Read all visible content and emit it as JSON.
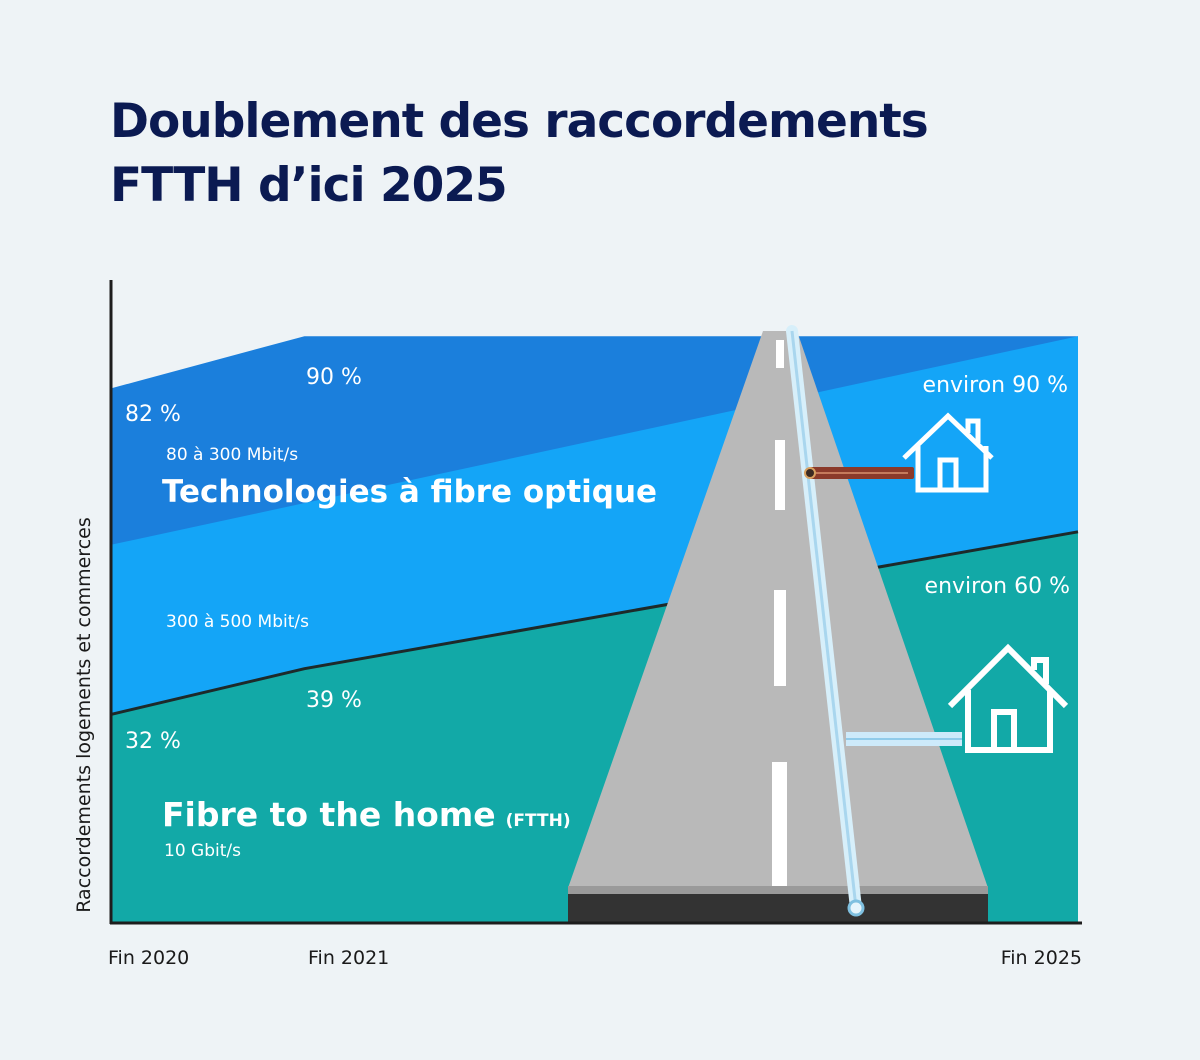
{
  "title_lines": [
    "Doublement des raccordements",
    "FTTH d’ici 2025"
  ],
  "chart_data": {
    "type": "area",
    "title": "Doublement des raccordements FTTH d’ici 2025",
    "ylabel": "Raccordements logements et commerces",
    "xlabel": "",
    "x": [
      "Fin 2020",
      "Fin 2021",
      "Fin 2025"
    ],
    "x_positions": [
      2020,
      2021,
      2025
    ],
    "ylim": [
      0,
      100
    ],
    "grid": false,
    "series": [
      {
        "name": "Fibre to the home",
        "name_suffix": "(FTTH)",
        "speed": "10 Gbit/s",
        "values": [
          32,
          39,
          60
        ],
        "labels": [
          "32 %",
          "39 %",
          "environ 60 %"
        ],
        "color": "#12a9a7"
      },
      {
        "name": "Technologies à fibre optique",
        "values": [
          82,
          90,
          90
        ],
        "labels": [
          "82 %",
          "90 %",
          "environ 90 %"
        ],
        "color": "#14a5f7",
        "top_color": "#1b7fdc",
        "speed_bands": [
          "80 à 300 Mbit/s",
          "300 à 500 Mbit/s"
        ]
      }
    ]
  },
  "colors": {
    "background": "#eef3f6",
    "title": "#0b1a52",
    "road": "#b9b9b9",
    "road_base": "#333333",
    "copper_cable": "#8b3a2a",
    "fiber_cable": "#bfe4f7",
    "house": "#ffffff"
  },
  "icons": [
    "house-icon-copper",
    "house-icon-fiber",
    "road-illustration",
    "fiber-cable",
    "copper-cable"
  ]
}
